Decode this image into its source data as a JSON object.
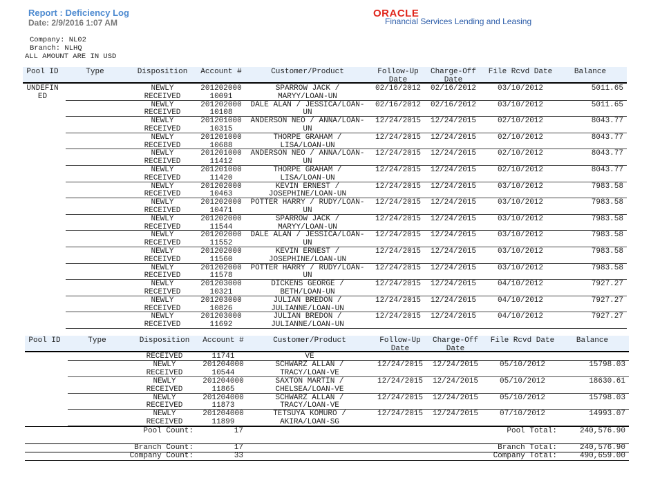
{
  "header": {
    "title": "Report : Deficiency Log",
    "date": "Date: 2/9/2016  1:07 AM",
    "logo": "ORACLE",
    "logo_sub": "Financial Services Lending and Leasing"
  },
  "meta": {
    "company": "Company:  NL02",
    "branch": "Branch:  NLHQ",
    "currency_note": "ALL AMOUNT ARE IN USD"
  },
  "columns": [
    [
      "Pool ID",
      ""
    ],
    [
      "Type",
      ""
    ],
    [
      "Disposition",
      ""
    ],
    [
      "Account #",
      ""
    ],
    [
      "Customer/Product",
      ""
    ],
    [
      "Follow-Up",
      "Date"
    ],
    [
      "Charge-Off",
      "Date"
    ],
    [
      "File Rcvd Date",
      ""
    ],
    [
      "Balance",
      ""
    ]
  ],
  "table1": {
    "pool_id": [
      "UNDEFIN",
      "ED"
    ],
    "rows": [
      [
        [
          "NEWLY",
          "RECEIVED"
        ],
        [
          "201202000",
          "10091"
        ],
        [
          "SPARROW JACK /",
          "MARYY/LOAN-UN"
        ],
        "02/16/2012",
        "02/16/2012",
        "03/10/2012",
        "5011.65"
      ],
      [
        [
          "NEWLY",
          "RECEIVED"
        ],
        [
          "201202000",
          "10108"
        ],
        [
          "DALE ALAN / JESSICA/LOAN-",
          "UN"
        ],
        "02/16/2012",
        "02/16/2012",
        "03/10/2012",
        "5011.65"
      ],
      [
        [
          "NEWLY",
          "RECEIVED"
        ],
        [
          "201201000",
          "10315"
        ],
        [
          "ANDERSON NEO / ANNA/LOAN-",
          "UN"
        ],
        "12/24/2015",
        "12/24/2015",
        "02/10/2012",
        "8043.77"
      ],
      [
        [
          "NEWLY",
          "RECEIVED"
        ],
        [
          "201201000",
          "10688"
        ],
        [
          "THORPE GRAHAM /",
          "LISA/LOAN-UN"
        ],
        "12/24/2015",
        "12/24/2015",
        "02/10/2012",
        "8043.77"
      ],
      [
        [
          "NEWLY",
          "RECEIVED"
        ],
        [
          "201201000",
          "11412"
        ],
        [
          "ANDERSON NEO / ANNA/LOAN-",
          "UN"
        ],
        "12/24/2015",
        "12/24/2015",
        "02/10/2012",
        "8043.77"
      ],
      [
        [
          "NEWLY",
          "RECEIVED"
        ],
        [
          "201201000",
          "11420"
        ],
        [
          "THORPE GRAHAM /",
          "LISA/LOAN-UN"
        ],
        "12/24/2015",
        "12/24/2015",
        "02/10/2012",
        "8043.77"
      ],
      [
        [
          "NEWLY",
          "RECEIVED"
        ],
        [
          "201202000",
          "10463"
        ],
        [
          "KEVIN ERNEST /",
          "JOSEPHINE/LOAN-UN"
        ],
        "12/24/2015",
        "12/24/2015",
        "03/10/2012",
        "7983.58"
      ],
      [
        [
          "NEWLY",
          "RECEIVED"
        ],
        [
          "201202000",
          "10471"
        ],
        [
          "POTTER HARRY / RUDY/LOAN-",
          "UN"
        ],
        "12/24/2015",
        "12/24/2015",
        "03/10/2012",
        "7983.58"
      ],
      [
        [
          "NEWLY",
          "RECEIVED"
        ],
        [
          "201202000",
          "11544"
        ],
        [
          "SPARROW JACK /",
          "MARYY/LOAN-UN"
        ],
        "12/24/2015",
        "12/24/2015",
        "03/10/2012",
        "7983.58"
      ],
      [
        [
          "NEWLY",
          "RECEIVED"
        ],
        [
          "201202000",
          "11552"
        ],
        [
          "DALE ALAN / JESSICA/LOAN-",
          "UN"
        ],
        "12/24/2015",
        "12/24/2015",
        "03/10/2012",
        "7983.58"
      ],
      [
        [
          "NEWLY",
          "RECEIVED"
        ],
        [
          "201202000",
          "11560"
        ],
        [
          "KEVIN ERNEST /",
          "JOSEPHINE/LOAN-UN"
        ],
        "12/24/2015",
        "12/24/2015",
        "03/10/2012",
        "7983.58"
      ],
      [
        [
          "NEWLY",
          "RECEIVED"
        ],
        [
          "201202000",
          "11578"
        ],
        [
          "POTTER HARRY / RUDY/LOAN-",
          "UN"
        ],
        "12/24/2015",
        "12/24/2015",
        "03/10/2012",
        "7983.58"
      ],
      [
        [
          "NEWLY",
          "RECEIVED"
        ],
        [
          "201203000",
          "10321"
        ],
        [
          "DICKENS GEORGE /",
          "BETH/LOAN-UN"
        ],
        "12/24/2015",
        "12/24/2015",
        "04/10/2012",
        "7927.27"
      ],
      [
        [
          "NEWLY",
          "RECEIVED"
        ],
        [
          "201203000",
          "10826"
        ],
        [
          "JULIAN BREDON /",
          "JULIANNE/LOAN-UN"
        ],
        "12/24/2015",
        "12/24/2015",
        "04/10/2012",
        "7927.27"
      ],
      [
        [
          "NEWLY",
          "RECEIVED"
        ],
        [
          "201203000",
          "11692"
        ],
        [
          "JULIAN BREDON /",
          "JULIANNE/LOAN-UN"
        ],
        "12/24/2015",
        "12/24/2015",
        "04/10/2012",
        "7927.27"
      ]
    ]
  },
  "table2": {
    "continuation": [
      "RECEIVED",
      "11741",
      "VE"
    ],
    "rows": [
      [
        [
          "NEWLY",
          "RECEIVED"
        ],
        [
          "201204000",
          "10544"
        ],
        [
          "SCHWARZ ALLAN /",
          "TRACY/LOAN-VE"
        ],
        "12/24/2015",
        "12/24/2015",
        "05/10/2012",
        "15798.03"
      ],
      [
        [
          "NEWLY",
          "RECEIVED"
        ],
        [
          "201204000",
          "11865"
        ],
        [
          "SAXTON MARTIN /",
          "CHELSEA/LOAN-VE"
        ],
        "12/24/2015",
        "12/24/2015",
        "05/10/2012",
        "18630.61"
      ],
      [
        [
          "NEWLY",
          "RECEIVED"
        ],
        [
          "201204000",
          "11873"
        ],
        [
          "SCHWARZ ALLAN /",
          "TRACY/LOAN-VE"
        ],
        "12/24/2015",
        "12/24/2015",
        "05/10/2012",
        "15798.03"
      ],
      [
        [
          "NEWLY",
          "RECEIVED"
        ],
        [
          "201204000",
          "11899"
        ],
        [
          "TETSUYA KOMURO /",
          "AKIRA/LOAN-SG"
        ],
        "12/24/2015",
        "12/24/2015",
        "07/10/2012",
        "14993.07"
      ]
    ]
  },
  "summary": {
    "pool_count_label": "Pool Count:",
    "pool_count": "17",
    "pool_total_label": "Pool Total:",
    "pool_total": "240,576.90",
    "branch_count_label": "Branch Count:",
    "branch_count": "17",
    "branch_total_label": "Branch Total:",
    "branch_total": "240,576.90",
    "company_count_label": "Company Count:",
    "company_count": "33",
    "company_total_label": "Company Total:",
    "company_total": "490,659.00"
  }
}
